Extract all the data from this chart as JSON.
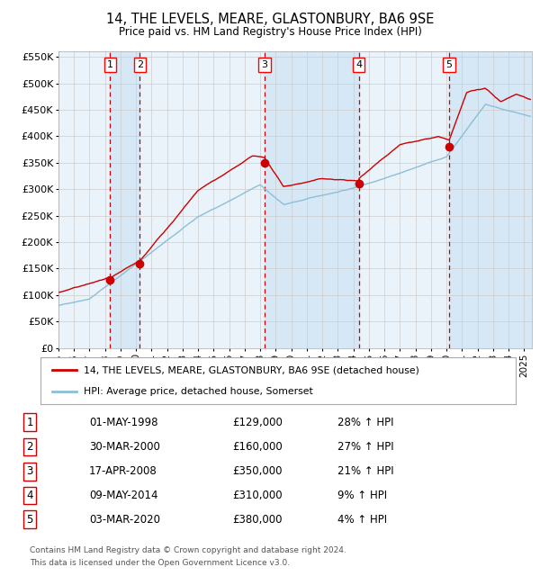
{
  "title": "14, THE LEVELS, MEARE, GLASTONBURY, BA6 9SE",
  "subtitle": "Price paid vs. HM Land Registry's House Price Index (HPI)",
  "footer_line1": "Contains HM Land Registry data © Crown copyright and database right 2024.",
  "footer_line2": "This data is licensed under the Open Government Licence v3.0.",
  "legend_red": "14, THE LEVELS, MEARE, GLASTONBURY, BA6 9SE (detached house)",
  "legend_blue": "HPI: Average price, detached house, Somerset",
  "sales": [
    {
      "num": 1,
      "date": "01-MAY-1998",
      "year": 1998.33,
      "price": 129000,
      "pct": "28% ↑ HPI"
    },
    {
      "num": 2,
      "date": "30-MAR-2000",
      "year": 2000.25,
      "price": 160000,
      "pct": "27% ↑ HPI"
    },
    {
      "num": 3,
      "date": "17-APR-2008",
      "year": 2008.29,
      "price": 350000,
      "pct": "21% ↑ HPI"
    },
    {
      "num": 4,
      "date": "09-MAY-2014",
      "year": 2014.36,
      "price": 310000,
      "pct": "9% ↑ HPI"
    },
    {
      "num": 5,
      "date": "03-MAR-2020",
      "year": 2020.17,
      "price": 380000,
      "pct": "4% ↑ HPI"
    }
  ],
  "hpi_color": "#8bbfd8",
  "price_color": "#cc0000",
  "marker_color": "#cc0000",
  "vline_color": "#cc0000",
  "shade_color": "#d6e8f5",
  "grid_color": "#cccccc",
  "background_color": "#ffffff",
  "plot_bg_color": "#eaf3fa",
  "ylim": [
    0,
    560000
  ],
  "yticks": [
    0,
    50000,
    100000,
    150000,
    200000,
    250000,
    300000,
    350000,
    400000,
    450000,
    500000,
    550000
  ],
  "xlim_start": 1995.0,
  "xlim_end": 2025.5,
  "xticks": [
    1995,
    1996,
    1997,
    1998,
    1999,
    2000,
    2001,
    2002,
    2003,
    2004,
    2005,
    2006,
    2007,
    2008,
    2009,
    2010,
    2011,
    2012,
    2013,
    2014,
    2015,
    2016,
    2017,
    2018,
    2019,
    2020,
    2021,
    2022,
    2023,
    2024,
    2025
  ]
}
